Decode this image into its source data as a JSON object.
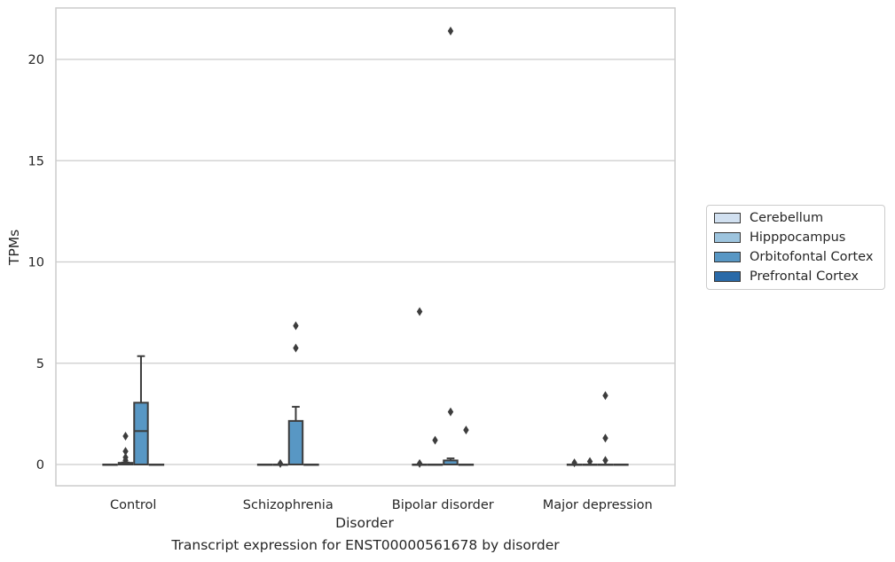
{
  "caption": "Transcript expression for ENST00000561678 by disorder",
  "chart_data": {
    "type": "box",
    "title": "",
    "xlabel": "Disorder",
    "ylabel": "TPMs",
    "ylim": [
      -1.07,
      22.5
    ],
    "yticks": [
      0,
      5,
      10,
      15,
      20
    ],
    "grid": "horizontal",
    "legend_position": "right",
    "categories": [
      "Control",
      "Schizophrenia",
      "Bipolar disorder",
      "Major depression"
    ],
    "series": [
      {
        "name": "Cerebellum",
        "color": "#d1e0f0"
      },
      {
        "name": "Hipppocampus",
        "color": "#9dc4de"
      },
      {
        "name": "Orbitofontal Cortex",
        "color": "#5897c4"
      },
      {
        "name": "Prefrontal Cortex",
        "color": "#2a6aa8"
      }
    ],
    "boxes": [
      {
        "category": "Control",
        "series": "Cerebellum",
        "q1": 0,
        "median": 0,
        "q3": 0,
        "whisker_low": 0,
        "whisker_high": 0,
        "outliers": []
      },
      {
        "category": "Control",
        "series": "Hipppocampus",
        "q1": 0,
        "median": 0,
        "q3": 0.08,
        "whisker_low": 0,
        "whisker_high": 0.1,
        "outliers": [
          0.2,
          0.35,
          0.65,
          1.4
        ]
      },
      {
        "category": "Control",
        "series": "Orbitofontal Cortex",
        "q1": 0,
        "median": 1.65,
        "q3": 3.05,
        "whisker_low": 0,
        "whisker_high": 5.35,
        "outliers": []
      },
      {
        "category": "Control",
        "series": "Prefrontal Cortex",
        "q1": 0,
        "median": 0,
        "q3": 0,
        "whisker_low": 0,
        "whisker_high": 0,
        "outliers": []
      },
      {
        "category": "Schizophrenia",
        "series": "Cerebellum",
        "q1": 0,
        "median": 0,
        "q3": 0,
        "whisker_low": 0,
        "whisker_high": 0,
        "outliers": []
      },
      {
        "category": "Schizophrenia",
        "series": "Hipppocampus",
        "q1": 0,
        "median": 0,
        "q3": 0,
        "whisker_low": 0,
        "whisker_high": 0,
        "outliers": [
          0.05
        ]
      },
      {
        "category": "Schizophrenia",
        "series": "Orbitofontal Cortex",
        "q1": 0,
        "median": 0,
        "q3": 2.15,
        "whisker_low": 0,
        "whisker_high": 2.85,
        "outliers": [
          5.75,
          6.85
        ]
      },
      {
        "category": "Schizophrenia",
        "series": "Prefrontal Cortex",
        "q1": 0,
        "median": 0,
        "q3": 0,
        "whisker_low": 0,
        "whisker_high": 0,
        "outliers": []
      },
      {
        "category": "Bipolar disorder",
        "series": "Cerebellum",
        "q1": 0,
        "median": 0,
        "q3": 0,
        "whisker_low": 0,
        "whisker_high": 0,
        "outliers": [
          0.05,
          7.55
        ]
      },
      {
        "category": "Bipolar disorder",
        "series": "Hipppocampus",
        "q1": 0,
        "median": 0,
        "q3": 0,
        "whisker_low": 0,
        "whisker_high": 0,
        "outliers": [
          1.2
        ]
      },
      {
        "category": "Bipolar disorder",
        "series": "Orbitofontal Cortex",
        "q1": 0,
        "median": 0,
        "q3": 0.2,
        "whisker_low": 0,
        "whisker_high": 0.3,
        "outliers": [
          2.6,
          21.4
        ]
      },
      {
        "category": "Bipolar disorder",
        "series": "Prefrontal Cortex",
        "q1": 0,
        "median": 0,
        "q3": 0,
        "whisker_low": 0,
        "whisker_high": 0,
        "outliers": [
          1.7
        ]
      },
      {
        "category": "Major depression",
        "series": "Cerebellum",
        "q1": 0,
        "median": 0,
        "q3": 0,
        "whisker_low": 0,
        "whisker_high": 0,
        "outliers": [
          0.08
        ]
      },
      {
        "category": "Major depression",
        "series": "Hipppocampus",
        "q1": 0,
        "median": 0,
        "q3": 0,
        "whisker_low": 0,
        "whisker_high": 0,
        "outliers": [
          0.15
        ]
      },
      {
        "category": "Major depression",
        "series": "Orbitofontal Cortex",
        "q1": 0,
        "median": 0,
        "q3": 0,
        "whisker_low": 0,
        "whisker_high": 0,
        "outliers": [
          0.2,
          1.3,
          3.4
        ]
      },
      {
        "category": "Major depression",
        "series": "Prefrontal Cortex",
        "q1": 0,
        "median": 0,
        "q3": 0,
        "whisker_low": 0,
        "whisker_high": 0,
        "outliers": []
      }
    ]
  }
}
